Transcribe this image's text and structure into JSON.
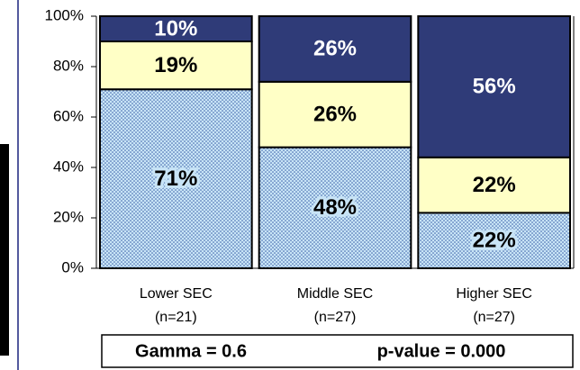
{
  "chart_data": {
    "type": "stacked_bar",
    "categories": [
      "Lower SEC",
      "Middle SEC",
      "Higher SEC"
    ],
    "category_notes": [
      "(n=21)",
      "(n=27)",
      "(n=27)"
    ],
    "series": [
      {
        "color": "#c8e4f6",
        "pattern": "dots",
        "label_color": "#000000",
        "values": [
          71,
          48,
          22
        ],
        "value_labels": [
          "71%",
          "48%",
          "22%"
        ]
      },
      {
        "color": "#ffffc6",
        "label_color": "#000000",
        "values": [
          19,
          26,
          22
        ],
        "value_labels": [
          "19%",
          "26%",
          "22%"
        ]
      },
      {
        "color": "#2f3b78",
        "label_color": "#ffffff",
        "values": [
          10,
          26,
          56
        ],
        "value_labels": [
          "10%",
          "26%",
          "56%"
        ]
      }
    ],
    "ylim": [
      0,
      100
    ],
    "yticks": [
      {
        "value": 0,
        "label": "0%"
      },
      {
        "value": 20,
        "label": "20%"
      },
      {
        "value": 40,
        "label": "40%"
      },
      {
        "value": 60,
        "label": "60%"
      },
      {
        "value": 80,
        "label": "80%"
      },
      {
        "value": 100,
        "label": "100%"
      }
    ],
    "annotations": [
      "Gamma = 0.6",
      "p-value = 0.000"
    ]
  }
}
